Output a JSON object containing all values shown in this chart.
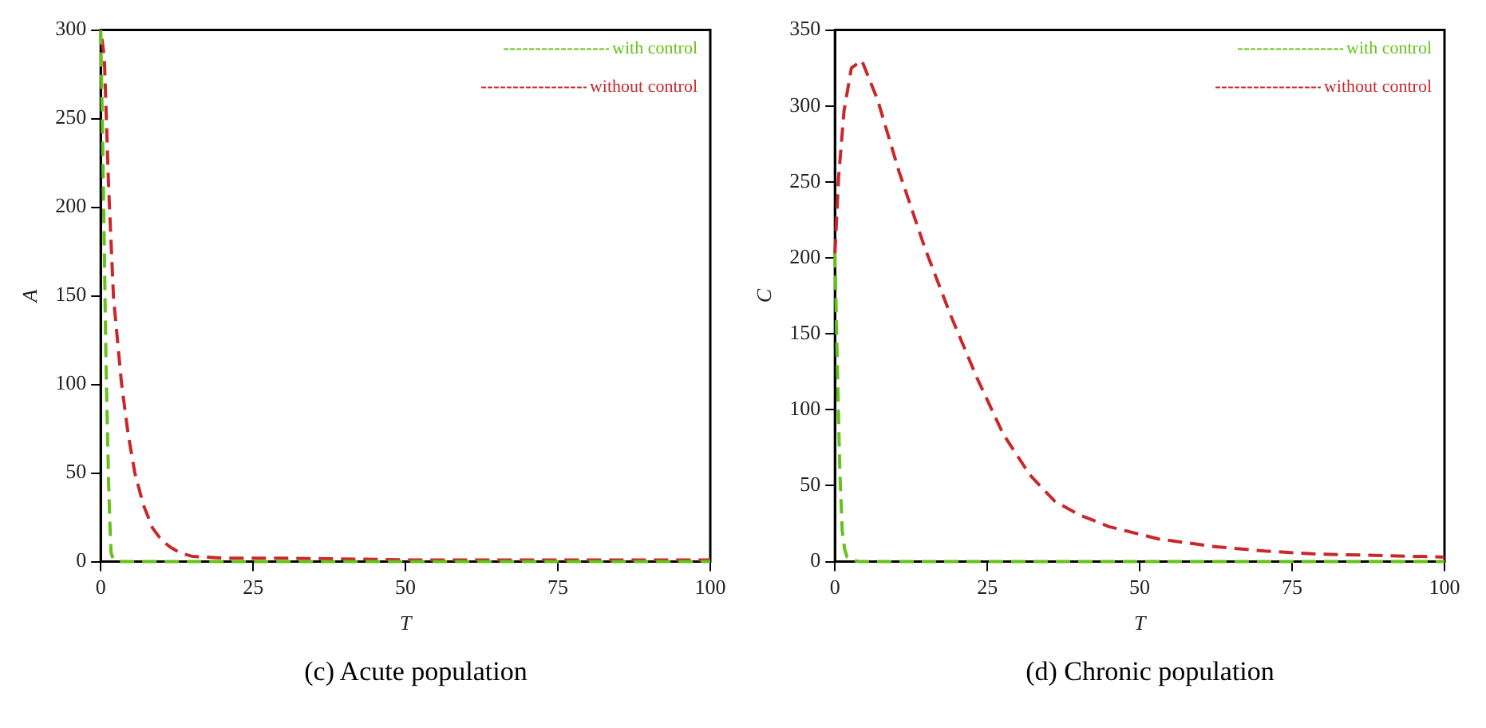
{
  "chart_data": [
    {
      "type": "line",
      "title": "(c)  Acute population",
      "xlabel": "T",
      "ylabel": "A",
      "xlim": [
        0,
        100
      ],
      "xticks": [
        0,
        25,
        50,
        75,
        100
      ],
      "ylim": [
        0,
        300
      ],
      "yticks": [
        0,
        50,
        100,
        150,
        200,
        250,
        300
      ],
      "grid": false,
      "legend": "top right",
      "marker": "none",
      "line_style": "dashed",
      "series": [
        {
          "name": "with control",
          "color": "#66c21a",
          "x": [
            0,
            0.3,
            0.6,
            0.85,
            1.1,
            1.3,
            1.5,
            1.7,
            2,
            2.5,
            3,
            5,
            25,
            50,
            75,
            100
          ],
          "values": [
            300,
            240,
            175,
            115,
            75,
            44,
            22,
            5,
            2,
            1,
            0,
            0,
            0,
            0,
            0,
            0
          ]
        },
        {
          "name": "without control",
          "color": "#c8282a",
          "x": [
            0.2,
            0.6,
            1.3,
            2.1,
            3.4,
            4.5,
            5.6,
            7,
            8.5,
            10,
            11.5,
            13,
            15,
            20,
            30,
            50,
            75,
            100
          ],
          "values": [
            295,
            284,
            211,
            149,
            101,
            72,
            50,
            32,
            19,
            12,
            8,
            5,
            3,
            2,
            2,
            1,
            1,
            1
          ]
        }
      ]
    },
    {
      "type": "line",
      "title": "(d)  Chronic population",
      "xlabel": "T",
      "ylabel": "C",
      "xlim": [
        0,
        100
      ],
      "xticks": [
        0,
        25,
        50,
        75,
        100
      ],
      "ylim": [
        0,
        350
      ],
      "yticks": [
        0,
        50,
        100,
        150,
        200,
        250,
        300,
        350
      ],
      "grid": false,
      "legend": "top right",
      "marker": "none",
      "line_style": "dashed",
      "series": [
        {
          "name": "with control",
          "color": "#66c21a",
          "x": [
            0,
            0.4,
            0.8,
            1.2,
            1.6,
            2,
            3,
            4,
            25,
            50,
            75,
            100
          ],
          "values": [
            203,
            128,
            60,
            20,
            8,
            3,
            1,
            0,
            0,
            0,
            0,
            0
          ]
        },
        {
          "name": "without control",
          "color": "#c8282a",
          "x": [
            0,
            0.6,
            1.5,
            2.7,
            4.4,
            7,
            10.5,
            14.8,
            19,
            23.3,
            27.6,
            32,
            36,
            40,
            45,
            53,
            62,
            70.5,
            79,
            90,
            100
          ],
          "values": [
            203,
            253,
            297,
            325,
            330,
            304,
            257,
            206,
            162,
            121,
            84,
            57,
            40,
            31,
            23,
            15,
            10,
            7,
            5,
            4,
            3
          ]
        }
      ]
    }
  ]
}
